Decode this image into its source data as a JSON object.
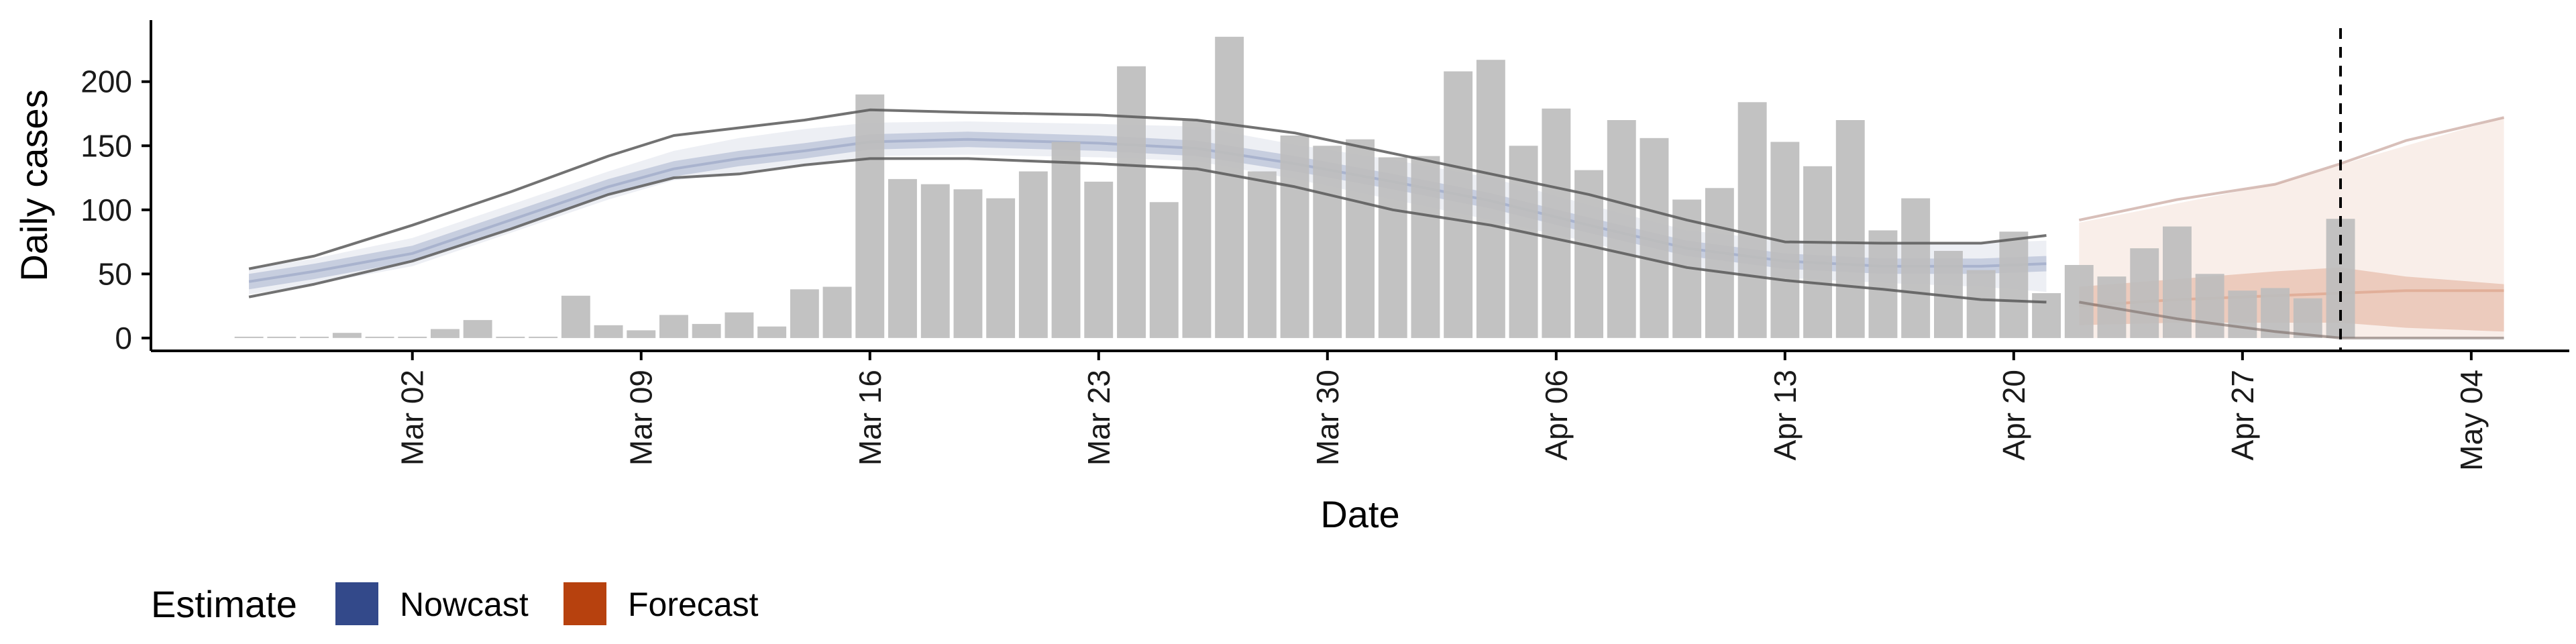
{
  "chart_data": {
    "type": "bar",
    "xlabel": "Date",
    "ylabel": "Daily cases",
    "x_tick_labels": [
      "Mar 02",
      "Mar 09",
      "Mar 16",
      "Mar 23",
      "Mar 30",
      "Apr 06",
      "Apr 13",
      "Apr 20",
      "Apr 27",
      "May 04"
    ],
    "x_tick_dates": [
      "2020-03-02",
      "2020-03-09",
      "2020-03-16",
      "2020-03-23",
      "2020-03-30",
      "2020-04-06",
      "2020-04-13",
      "2020-04-20",
      "2020-04-27",
      "2020-05-04"
    ],
    "y_ticks": [
      0,
      50,
      100,
      150,
      200
    ],
    "xlim": [
      "2020-02-23",
      "2020-05-07"
    ],
    "ylim": [
      -10,
      248
    ],
    "grid": false,
    "vline_date": "2020-04-30",
    "bars": {
      "dates": [
        "2020-02-26",
        "2020-02-27",
        "2020-02-28",
        "2020-02-29",
        "2020-03-01",
        "2020-03-02",
        "2020-03-03",
        "2020-03-04",
        "2020-03-05",
        "2020-03-06",
        "2020-03-07",
        "2020-03-08",
        "2020-03-09",
        "2020-03-10",
        "2020-03-11",
        "2020-03-12",
        "2020-03-13",
        "2020-03-14",
        "2020-03-15",
        "2020-03-16",
        "2020-03-17",
        "2020-03-18",
        "2020-03-19",
        "2020-03-20",
        "2020-03-21",
        "2020-03-22",
        "2020-03-23",
        "2020-03-24",
        "2020-03-25",
        "2020-03-26",
        "2020-03-27",
        "2020-03-28",
        "2020-03-29",
        "2020-03-30",
        "2020-03-31",
        "2020-04-01",
        "2020-04-02",
        "2020-04-03",
        "2020-04-04",
        "2020-04-05",
        "2020-04-06",
        "2020-04-07",
        "2020-04-08",
        "2020-04-09",
        "2020-04-10",
        "2020-04-11",
        "2020-04-12",
        "2020-04-13",
        "2020-04-14",
        "2020-04-15",
        "2020-04-16",
        "2020-04-17",
        "2020-04-18",
        "2020-04-19",
        "2020-04-20",
        "2020-04-21",
        "2020-04-22",
        "2020-04-23",
        "2020-04-24",
        "2020-04-25",
        "2020-04-26",
        "2020-04-27",
        "2020-04-28",
        "2020-04-29",
        "2020-04-30"
      ],
      "values": [
        1,
        1,
        0,
        4,
        0,
        0,
        7,
        14,
        0,
        0,
        33,
        10,
        6,
        18,
        11,
        20,
        9,
        38,
        40,
        190,
        124,
        120,
        116,
        109,
        130,
        153,
        122,
        212,
        106,
        170,
        235,
        130,
        158,
        150,
        155,
        141,
        142,
        208,
        217,
        150,
        179,
        131,
        170,
        156,
        108,
        117,
        184,
        153,
        134,
        170,
        84,
        109,
        68,
        53,
        83,
        35,
        57,
        48,
        70,
        87,
        50,
        37,
        39,
        31,
        93
      ],
      "color": "#BDBDBD"
    },
    "nowcast": {
      "name": "Nowcast",
      "color": "#33498A",
      "dates": [
        "2020-02-26",
        "2020-02-28",
        "2020-03-02",
        "2020-03-05",
        "2020-03-08",
        "2020-03-10",
        "2020-03-12",
        "2020-03-14",
        "2020-03-16",
        "2020-03-19",
        "2020-03-23",
        "2020-03-26",
        "2020-03-29",
        "2020-04-01",
        "2020-04-04",
        "2020-04-07",
        "2020-04-10",
        "2020-04-13",
        "2020-04-16",
        "2020-04-19",
        "2020-04-21"
      ],
      "median": [
        44,
        52,
        66,
        92,
        118,
        132,
        140,
        146,
        153,
        155,
        152,
        148,
        136,
        122,
        107,
        88,
        70,
        60,
        56,
        56,
        58
      ],
      "inner_lower": [
        38,
        46,
        60,
        86,
        112,
        126,
        134,
        140,
        147,
        149,
        146,
        142,
        130,
        116,
        101,
        82,
        64,
        54,
        50,
        50,
        52
      ],
      "inner_upper": [
        50,
        58,
        72,
        98,
        124,
        138,
        146,
        152,
        159,
        161,
        158,
        154,
        142,
        128,
        113,
        94,
        76,
        66,
        62,
        62,
        64
      ],
      "outer_lower": [
        34,
        42,
        56,
        82,
        108,
        123,
        129,
        135,
        142,
        143,
        141,
        138,
        124,
        108,
        92,
        75,
        54,
        47,
        43,
        40,
        36
      ],
      "outer_upper": [
        54,
        62,
        78,
        104,
        130,
        146,
        156,
        163,
        168,
        169,
        167,
        165,
        151,
        139,
        125,
        104,
        84,
        76,
        74,
        74,
        76
      ],
      "lines_lower": [
        32,
        42,
        60,
        85,
        112,
        125,
        128,
        135,
        140,
        140,
        136,
        132,
        118,
        100,
        88,
        72,
        55,
        45,
        38,
        30,
        28
      ],
      "lines_upper": [
        54,
        64,
        88,
        114,
        142,
        158,
        164,
        170,
        178,
        176,
        174,
        170,
        160,
        144,
        128,
        112,
        92,
        75,
        74,
        74,
        80
      ]
    },
    "forecast": {
      "name": "Forecast",
      "color": "#B7410E",
      "dates": [
        "2020-04-22",
        "2020-04-25",
        "2020-04-28",
        "2020-04-30",
        "2020-05-02",
        "2020-05-05"
      ],
      "median": [
        25,
        30,
        33,
        35,
        37,
        37
      ],
      "inner_lower": [
        10,
        12,
        12,
        12,
        8,
        5
      ],
      "inner_upper": [
        40,
        46,
        52,
        55,
        48,
        42
      ],
      "outer_lower": [
        0,
        0,
        0,
        0,
        0,
        0
      ],
      "outer_upper": [
        90,
        105,
        120,
        135,
        150,
        172
      ],
      "lines_lower": [
        28,
        15,
        5,
        0,
        0,
        0
      ],
      "lines_upper": [
        92,
        108,
        120,
        136,
        154,
        172
      ]
    },
    "legend": {
      "title": "Estimate",
      "position": "bottom-left",
      "entries": [
        {
          "label": "Nowcast",
          "color": "#33498A"
        },
        {
          "label": "Forecast",
          "color": "#B7410E"
        }
      ]
    }
  }
}
